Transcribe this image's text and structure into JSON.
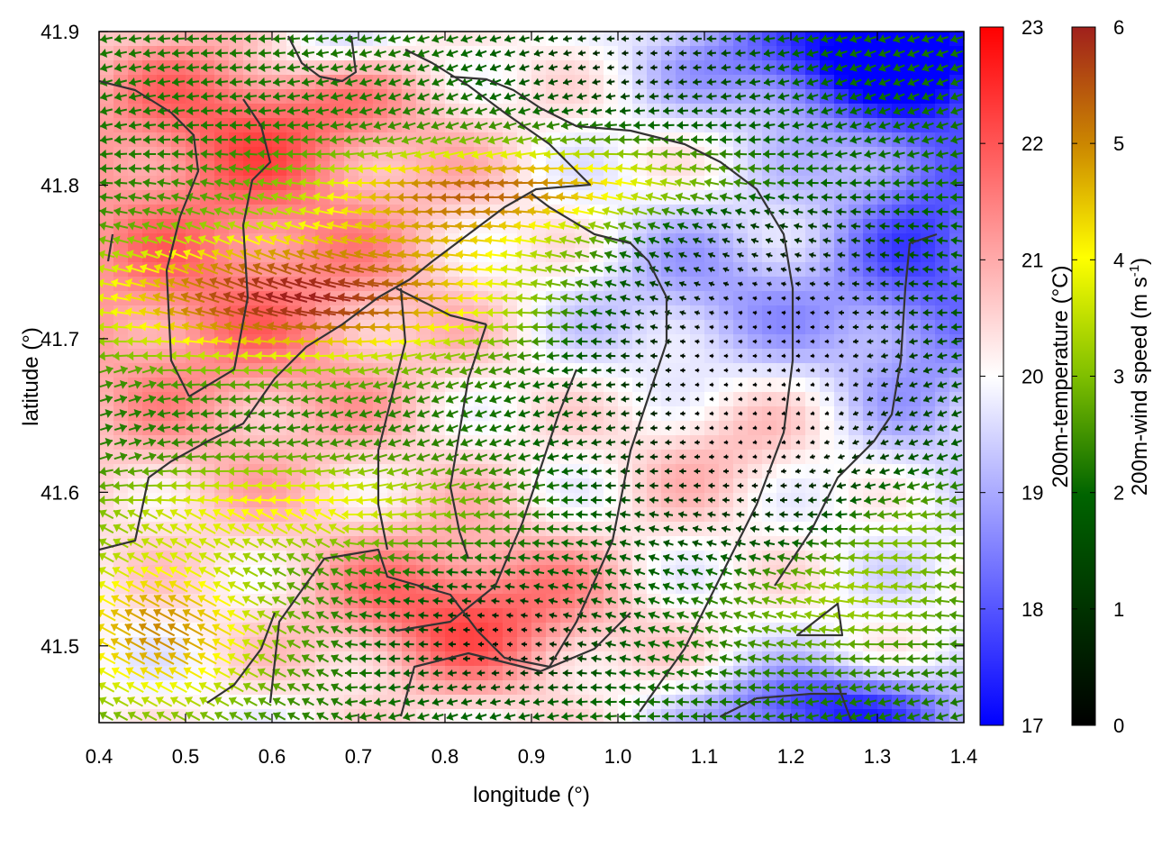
{
  "chart_data": {
    "type": "heatmap",
    "xlabel": "longitude (°)",
    "ylabel": "latitude (°)",
    "xlim": [
      0.4,
      1.4
    ],
    "ylim": [
      41.45,
      41.9
    ],
    "x_ticks": [
      "0.4",
      "0.5",
      "0.6",
      "0.7",
      "0.8",
      "0.9",
      "1.0",
      "1.1",
      "1.2",
      "1.3",
      "1.4"
    ],
    "y_ticks": [
      "41.5",
      "41.6",
      "41.7",
      "41.8",
      "41.9"
    ],
    "background_field": {
      "label": "200m-temperature (°C)",
      "range": [
        17,
        23
      ],
      "ticks": [
        "17",
        "18",
        "19",
        "20",
        "21",
        "22",
        "23"
      ],
      "colormap": [
        "#0000ff",
        "#ffffff",
        "#ff0000"
      ]
    },
    "vector_field": {
      "label_main": "200m-wind speed (m s",
      "label_sup": "-1",
      "label_end": ")",
      "range": [
        0,
        6
      ],
      "ticks": [
        "0",
        "1",
        "2",
        "3",
        "4",
        "5",
        "6"
      ],
      "colormap": [
        "#000000",
        "#006400",
        "#7fbf00",
        "#ffff00",
        "#cc8800",
        "#a0201c"
      ]
    }
  }
}
